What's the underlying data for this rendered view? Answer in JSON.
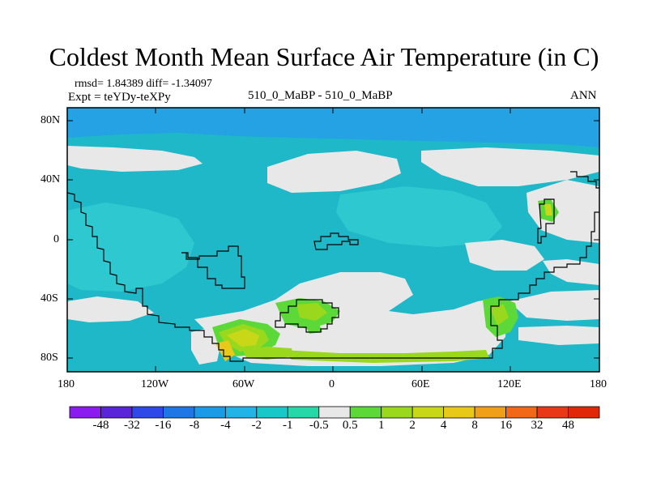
{
  "title": "Coldest Month Mean Surface Air Temperature (in C)",
  "stats": "rmsd= 1.84389 diff= -1.34097",
  "expt": "Expt = teYDy-teXPy",
  "center_label": "510_0_MaBP - 510_0_MaBP",
  "season": "ANN",
  "lat_ticks": [
    "80N",
    "40N",
    "0",
    "40S",
    "80S"
  ],
  "lon_ticks": [
    "180",
    "120W",
    "60W",
    "0",
    "60E",
    "120E",
    "180"
  ],
  "colorbar": {
    "labels": [
      "-48",
      "-32",
      "-16",
      "-8",
      "-4",
      "-2",
      "-1",
      "-0.5",
      "0.5",
      "1",
      "2",
      "4",
      "8",
      "16",
      "32",
      "48"
    ],
    "colors": [
      "#8a1cf0",
      "#5a24d8",
      "#2f48e8",
      "#1f77e6",
      "#1b9be6",
      "#22b4e6",
      "#18c8c8",
      "#26d8a8",
      "#e8e8e8",
      "#5cd838",
      "#9ad81e",
      "#c8d818",
      "#e8c818",
      "#f0a018",
      "#f06818",
      "#e83818",
      "#e02808"
    ]
  },
  "colors": {
    "ocean_bg": "#1fb8c8",
    "band_blue": "#25a2e4",
    "neutral": "#e8e8e8",
    "coast": "#000000"
  }
}
